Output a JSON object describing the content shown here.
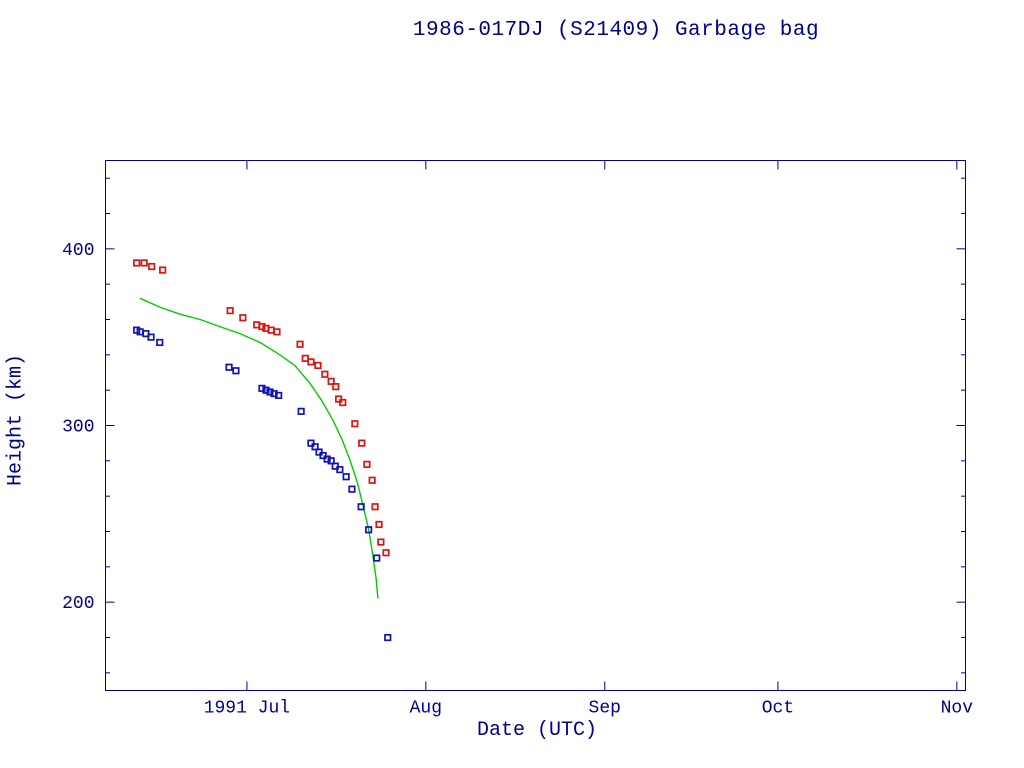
{
  "title": "1986-017DJ (S21409) Garbage bag",
  "colors": {
    "background": "#ffffff",
    "axis": "#00008b",
    "text": "#00008b",
    "apogee": "#dd1111",
    "perigee": "#1111bb",
    "model": "#00cc00"
  },
  "chart_data": {
    "type": "scatter",
    "title": "1986-017DJ (S21409) Garbage bag",
    "xlabel": "Date (UTC)",
    "ylabel": "Height (km)",
    "x_unit": "days since 1991-06-01",
    "xlim": [
      5.5,
      154.5
    ],
    "ylim": [
      150,
      450
    ],
    "grid": false,
    "legend": "none",
    "x_ticks": [
      {
        "value": 30,
        "label": "1991 Jul"
      },
      {
        "value": 61,
        "label": "Aug"
      },
      {
        "value": 92,
        "label": "Sep"
      },
      {
        "value": 122,
        "label": "Oct"
      },
      {
        "value": 153,
        "label": "Nov"
      }
    ],
    "y_ticks": [
      {
        "value": 200,
        "label": "200"
      },
      {
        "value": 300,
        "label": "300"
      },
      {
        "value": 400,
        "label": "400"
      }
    ],
    "y_minor_step": 20,
    "series": [
      {
        "name": "apogee-height",
        "type": "scatter",
        "marker": "square",
        "color_key": "apogee",
        "points": [
          [
            10.9,
            392
          ],
          [
            12.2,
            392
          ],
          [
            13.5,
            390
          ],
          [
            15.4,
            388
          ],
          [
            27.1,
            365
          ],
          [
            29.3,
            361
          ],
          [
            31.7,
            357
          ],
          [
            32.6,
            356
          ],
          [
            33.3,
            355
          ],
          [
            34.2,
            354
          ],
          [
            35.2,
            353
          ],
          [
            39.2,
            346
          ],
          [
            40.1,
            338
          ],
          [
            41.1,
            336
          ],
          [
            42.3,
            334
          ],
          [
            43.5,
            329
          ],
          [
            44.6,
            325
          ],
          [
            45.4,
            322
          ],
          [
            45.9,
            315
          ],
          [
            46.6,
            313
          ],
          [
            48.7,
            301
          ],
          [
            49.9,
            290
          ],
          [
            50.8,
            278
          ],
          [
            51.7,
            269
          ],
          [
            52.2,
            254
          ],
          [
            52.9,
            244
          ],
          [
            53.2,
            234
          ],
          [
            54.1,
            228
          ]
        ]
      },
      {
        "name": "perigee-height",
        "type": "scatter",
        "marker": "square",
        "color_key": "perigee",
        "points": [
          [
            10.9,
            354
          ],
          [
            11.5,
            353
          ],
          [
            12.5,
            352
          ],
          [
            13.4,
            350
          ],
          [
            14.9,
            347
          ],
          [
            26.9,
            333
          ],
          [
            28.1,
            331
          ],
          [
            32.6,
            321
          ],
          [
            33.3,
            320
          ],
          [
            34.0,
            319
          ],
          [
            34.7,
            318
          ],
          [
            35.5,
            317
          ],
          [
            39.4,
            308
          ],
          [
            41.1,
            290
          ],
          [
            41.8,
            288
          ],
          [
            42.5,
            285
          ],
          [
            43.2,
            283
          ],
          [
            43.9,
            281
          ],
          [
            44.6,
            280
          ],
          [
            45.3,
            277
          ],
          [
            46.1,
            275
          ],
          [
            47.2,
            271
          ],
          [
            48.2,
            264
          ],
          [
            49.8,
            254
          ],
          [
            51.1,
            241
          ],
          [
            52.5,
            225
          ],
          [
            54.4,
            180
          ]
        ]
      },
      {
        "name": "predicted-decay-curve",
        "type": "line",
        "color_key": "model",
        "points": [
          [
            11.5,
            372
          ],
          [
            14.9,
            367
          ],
          [
            18.4,
            363
          ],
          [
            21.9,
            360
          ],
          [
            25.3,
            356
          ],
          [
            28.8,
            352
          ],
          [
            32.3,
            347
          ],
          [
            35.7,
            340
          ],
          [
            38.3,
            334
          ],
          [
            40.9,
            324
          ],
          [
            43.0,
            314
          ],
          [
            44.9,
            303
          ],
          [
            46.5,
            292
          ],
          [
            47.9,
            280
          ],
          [
            49.1,
            268
          ],
          [
            50.1,
            255
          ],
          [
            51.1,
            241
          ],
          [
            51.8,
            227
          ],
          [
            52.4,
            213
          ],
          [
            52.7,
            202
          ]
        ]
      }
    ]
  }
}
